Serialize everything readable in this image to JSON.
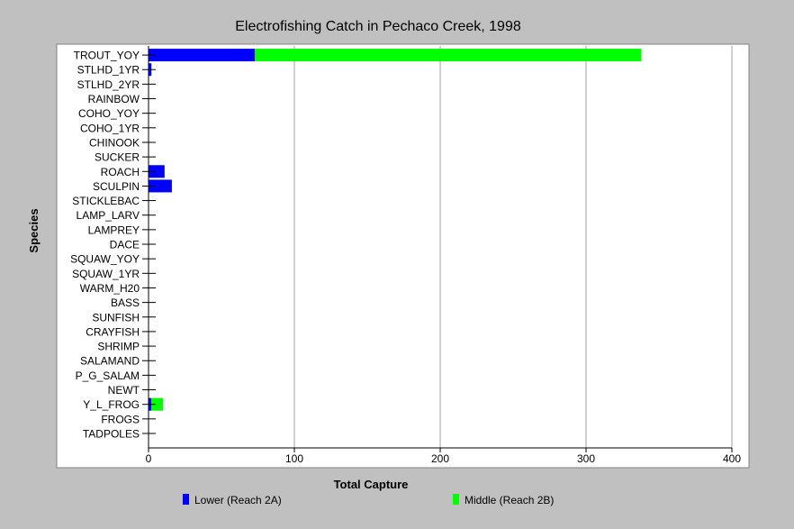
{
  "chart_data": {
    "type": "bar",
    "orientation": "horizontal",
    "stacked": true,
    "title": "Electrofishing Catch in Pechaco Creek, 1998",
    "xlabel": "Total Capture",
    "ylabel": "Species",
    "xlim": [
      0,
      400
    ],
    "xticks": [
      0,
      100,
      200,
      300,
      400
    ],
    "grid": "vertical",
    "legend_position": "bottom",
    "categories": [
      "TROUT_YOY",
      "STLHD_1YR",
      "STLHD_2YR",
      "RAINBOW",
      "COHO_YOY",
      "COHO_1YR",
      "CHINOOK",
      "SUCKER",
      "ROACH",
      "SCULPIN",
      "STICKLEBAC",
      "LAMP_LARV",
      "LAMPREY",
      "DACE",
      "SQUAW_YOY",
      "SQUAW_1YR",
      "WARM_H20",
      "BASS",
      "SUNFISH",
      "CRAYFISH",
      "SHRIMP",
      "SALAMAND",
      "P_G_SALAM",
      "NEWT",
      "Y_L_FROG",
      "FROGS",
      "TADPOLES"
    ],
    "series": [
      {
        "name": "Lower (Reach 2A)",
        "color": "#0000ff",
        "values": [
          73,
          2,
          0,
          0,
          0,
          0,
          0,
          0,
          11,
          16,
          0,
          0,
          0,
          0,
          0,
          0,
          0,
          0,
          0,
          0,
          0,
          0,
          0,
          0,
          2,
          0,
          0
        ]
      },
      {
        "name": "Middle (Reach 2B)",
        "color": "#00ff00",
        "values": [
          265,
          0,
          0,
          0,
          0,
          0,
          0,
          0,
          0,
          0,
          0,
          0,
          0,
          0,
          0,
          0,
          0,
          0,
          0,
          0,
          0,
          0,
          0,
          0,
          8,
          0,
          0
        ]
      }
    ]
  },
  "colors": {
    "background": "#c0c0c0",
    "plot_background": "#ffffff",
    "grid": "#a0a0a0"
  }
}
